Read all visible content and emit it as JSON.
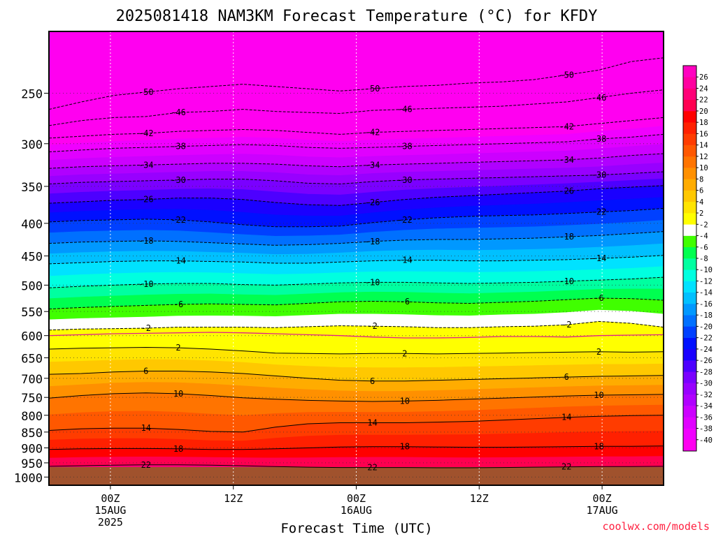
{
  "title": "2025081418 NAM3KM Forecast Temperature (°C) for KFDY",
  "credit": "coolwx.com/models",
  "chart_data": {
    "type": "heatmap",
    "title": "2025081418 NAM3KM Forecast Temperature (°C) for KFDY",
    "xlabel": "Forecast Time (UTC)",
    "ylabel": "",
    "x_range_hours": [
      -6,
      54
    ],
    "y_scale": "log",
    "y_range_hPa": [
      1030,
      200
    ],
    "x_ticks": [
      {
        "hour": 0,
        "lines": [
          "00Z",
          "15AUG",
          "2025"
        ]
      },
      {
        "hour": 12,
        "lines": [
          "12Z"
        ]
      },
      {
        "hour": 24,
        "lines": [
          "00Z",
          "16AUG"
        ]
      },
      {
        "hour": 36,
        "lines": [
          "12Z"
        ]
      },
      {
        "hour": 48,
        "lines": [
          "00Z",
          "17AUG"
        ]
      }
    ],
    "y_ticks": [
      250,
      300,
      350,
      400,
      450,
      500,
      550,
      600,
      650,
      700,
      750,
      800,
      850,
      900,
      950,
      1000
    ],
    "color_scale": {
      "levels": [
        -40,
        -38,
        -36,
        -34,
        -32,
        -30,
        -28,
        -26,
        -24,
        -22,
        -20,
        -18,
        -16,
        -14,
        -12,
        -10,
        -8,
        -6,
        -4,
        -2,
        2,
        4,
        6,
        8,
        10,
        12,
        14,
        16,
        18,
        20,
        22,
        24,
        26
      ],
      "colors": [
        "#ff00f0",
        "#f000ff",
        "#e000ff",
        "#cc00ff",
        "#b000ff",
        "#9800ff",
        "#7a00ff",
        "#4d00ff",
        "#1a00ff",
        "#0010ff",
        "#0040ff",
        "#0070ff",
        "#0098ff",
        "#00c0ff",
        "#00e2ff",
        "#00ffe0",
        "#00ffa0",
        "#00ff50",
        "#40ff00",
        "#ffffff",
        "#ffff00",
        "#ffe400",
        "#ffc800",
        "#ffac00",
        "#ff9000",
        "#ff7400",
        "#ff5800",
        "#ff3c00",
        "#ff2000",
        "#ff0000",
        "#ff0050",
        "#ff0078",
        "#ff00a0",
        "#ff00c0"
      ]
    },
    "isotherms": [
      {
        "value": -50,
        "p": [
          265,
          258,
          252,
          249,
          246,
          244,
          242,
          244,
          246,
          248,
          246,
          244,
          243,
          241,
          240,
          238,
          234,
          230,
          223,
          220
        ]
      },
      {
        "value": -46,
        "p": [
          281,
          276,
          273,
          272,
          268,
          267,
          265,
          267,
          268,
          269,
          266,
          265,
          264,
          263,
          262,
          260,
          258,
          254,
          250,
          247
        ]
      },
      {
        "value": -42,
        "p": [
          294,
          292,
          290,
          289,
          287,
          286,
          285,
          286,
          288,
          290,
          288,
          287,
          286,
          285,
          284,
          283,
          282,
          279,
          276,
          273
        ]
      },
      {
        "value": -38,
        "p": [
          309,
          307,
          305,
          304,
          303,
          302,
          301,
          302,
          304,
          305,
          304,
          303,
          302,
          301,
          300,
          299,
          298,
          295,
          293,
          290
        ]
      },
      {
        "value": -34,
        "p": [
          328,
          326,
          325,
          324,
          323,
          322,
          322,
          323,
          325,
          326,
          324,
          323,
          322,
          321,
          320,
          319,
          318,
          316,
          313,
          311
        ]
      },
      {
        "value": -30,
        "p": [
          347,
          345,
          344,
          343,
          342,
          341,
          341,
          343,
          346,
          347,
          344,
          342,
          341,
          340,
          339,
          338,
          337,
          336,
          334,
          332
        ]
      },
      {
        "value": -26,
        "p": [
          372,
          370,
          368,
          367,
          365,
          365,
          367,
          371,
          374,
          375,
          371,
          367,
          364,
          362,
          360,
          358,
          356,
          353,
          351,
          349
        ]
      },
      {
        "value": -22,
        "p": [
          398,
          396,
          395,
          394,
          395,
          398,
          402,
          405,
          405,
          404,
          399,
          395,
          392,
          390,
          389,
          388,
          386,
          384,
          382,
          379
        ]
      },
      {
        "value": -18,
        "p": [
          430,
          428,
          427,
          426,
          427,
          429,
          431,
          433,
          432,
          430,
          427,
          425,
          424,
          424,
          423,
          422,
          420,
          418,
          415,
          412
        ]
      },
      {
        "value": -14,
        "p": [
          463,
          461,
          459,
          458,
          458,
          459,
          460,
          462,
          462,
          460,
          458,
          457,
          457,
          458,
          458,
          457,
          456,
          454,
          452,
          449
        ]
      },
      {
        "value": -10,
        "p": [
          505,
          502,
          500,
          498,
          497,
          497,
          499,
          500,
          498,
          496,
          495,
          495,
          496,
          497,
          496,
          495,
          493,
          491,
          489,
          486
        ]
      },
      {
        "value": -6,
        "p": [
          545,
          542,
          540,
          538,
          536,
          535,
          536,
          537,
          534,
          531,
          530,
          531,
          533,
          534,
          532,
          530,
          527,
          524,
          525,
          528
        ]
      },
      {
        "value": -2,
        "p": [
          588,
          586,
          585,
          584,
          582,
          582,
          582,
          583,
          581,
          579,
          580,
          581,
          583,
          583,
          581,
          580,
          577,
          570,
          574,
          582
        ]
      },
      {
        "value": 2,
        "p": [
          630,
          628,
          627,
          626,
          627,
          630,
          634,
          639,
          640,
          641,
          640,
          640,
          641,
          640,
          639,
          638,
          637,
          636,
          637,
          636
        ]
      },
      {
        "value": 6,
        "p": [
          690,
          688,
          684,
          682,
          682,
          684,
          688,
          694,
          700,
          705,
          707,
          707,
          705,
          703,
          701,
          699,
          697,
          695,
          694,
          693
        ]
      },
      {
        "value": 10,
        "p": [
          752,
          745,
          740,
          738,
          740,
          745,
          751,
          755,
          758,
          760,
          761,
          760,
          758,
          755,
          752,
          749,
          746,
          744,
          743,
          742
        ]
      },
      {
        "value": 14,
        "p": [
          845,
          840,
          838,
          838,
          842,
          848,
          850,
          835,
          825,
          822,
          822,
          822,
          820,
          818,
          814,
          810,
          806,
          803,
          801,
          800
        ]
      },
      {
        "value": 18,
        "p": [
          905,
          903,
          902,
          902,
          903,
          905,
          905,
          903,
          900,
          897,
          896,
          896,
          897,
          898,
          898,
          897,
          896,
          895,
          895,
          894
        ]
      },
      {
        "value": 22,
        "p": [
          962,
          960,
          958,
          957,
          957,
          958,
          960,
          963,
          965,
          966,
          966,
          966,
          967,
          967,
          966,
          965,
          964,
          963,
          963,
          962
        ]
      }
    ],
    "magenta_line_2C": [
      600,
      598,
      596,
      595,
      594,
      593,
      594,
      596,
      598,
      600,
      603,
      605,
      605,
      604,
      602,
      602,
      603,
      600,
      599,
      598
    ]
  }
}
